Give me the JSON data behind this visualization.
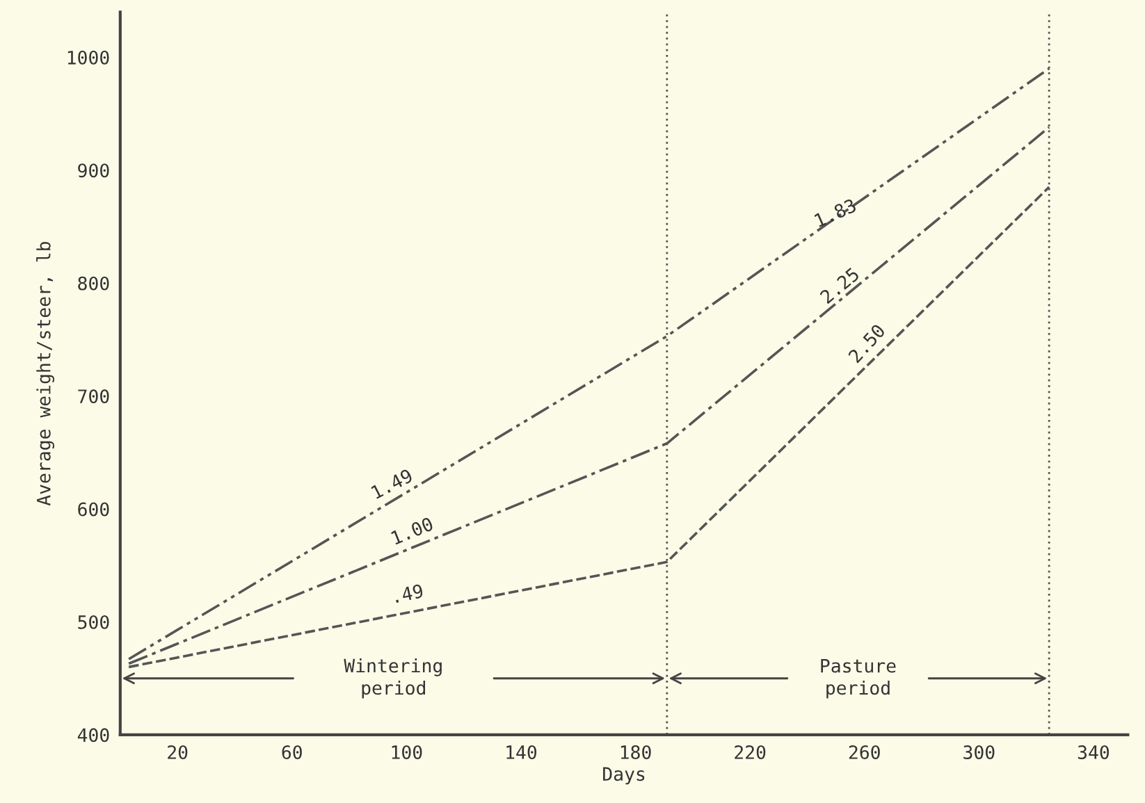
{
  "chart_data": {
    "type": "line",
    "xlabel": "Days",
    "ylabel": "Average weight/steer, lb",
    "series": [
      {
        "color": "#555555",
        "line_style": "dashdot2",
        "x": [
          3,
          191,
          324.5
        ],
        "values": [
          467,
          753,
          990
        ]
      },
      {
        "color": "#555555",
        "line_style": "dashdot",
        "x": [
          3,
          191,
          324.5
        ],
        "values": [
          463,
          658,
          938
        ]
      },
      {
        "color": "#555555",
        "line_style": "dashed",
        "x": [
          3,
          191,
          324.5
        ],
        "values": [
          460,
          553,
          885
        ]
      }
    ],
    "xlim": [
      0,
      352
    ],
    "ylim": [
      400,
      1040
    ],
    "xticks": [
      20,
      60,
      100,
      140,
      180,
      220,
      260,
      300,
      340
    ],
    "yticks": [
      400,
      500,
      600,
      700,
      800,
      900,
      1000
    ],
    "ref_lines": [
      {
        "axis": "x",
        "value": 191,
        "color": "#555555",
        "line_style": "dotted"
      },
      {
        "axis": "x",
        "value": 324.5,
        "color": "#555555",
        "line_style": "dotted"
      }
    ],
    "annotations": [
      "1.49",
      "1.00",
      ".49",
      "1.83",
      "2.25",
      "2.50",
      "Wintering\nperiod",
      "Pasture\nperiod"
    ],
    "grid": false,
    "legend": false,
    "marker": "none"
  }
}
